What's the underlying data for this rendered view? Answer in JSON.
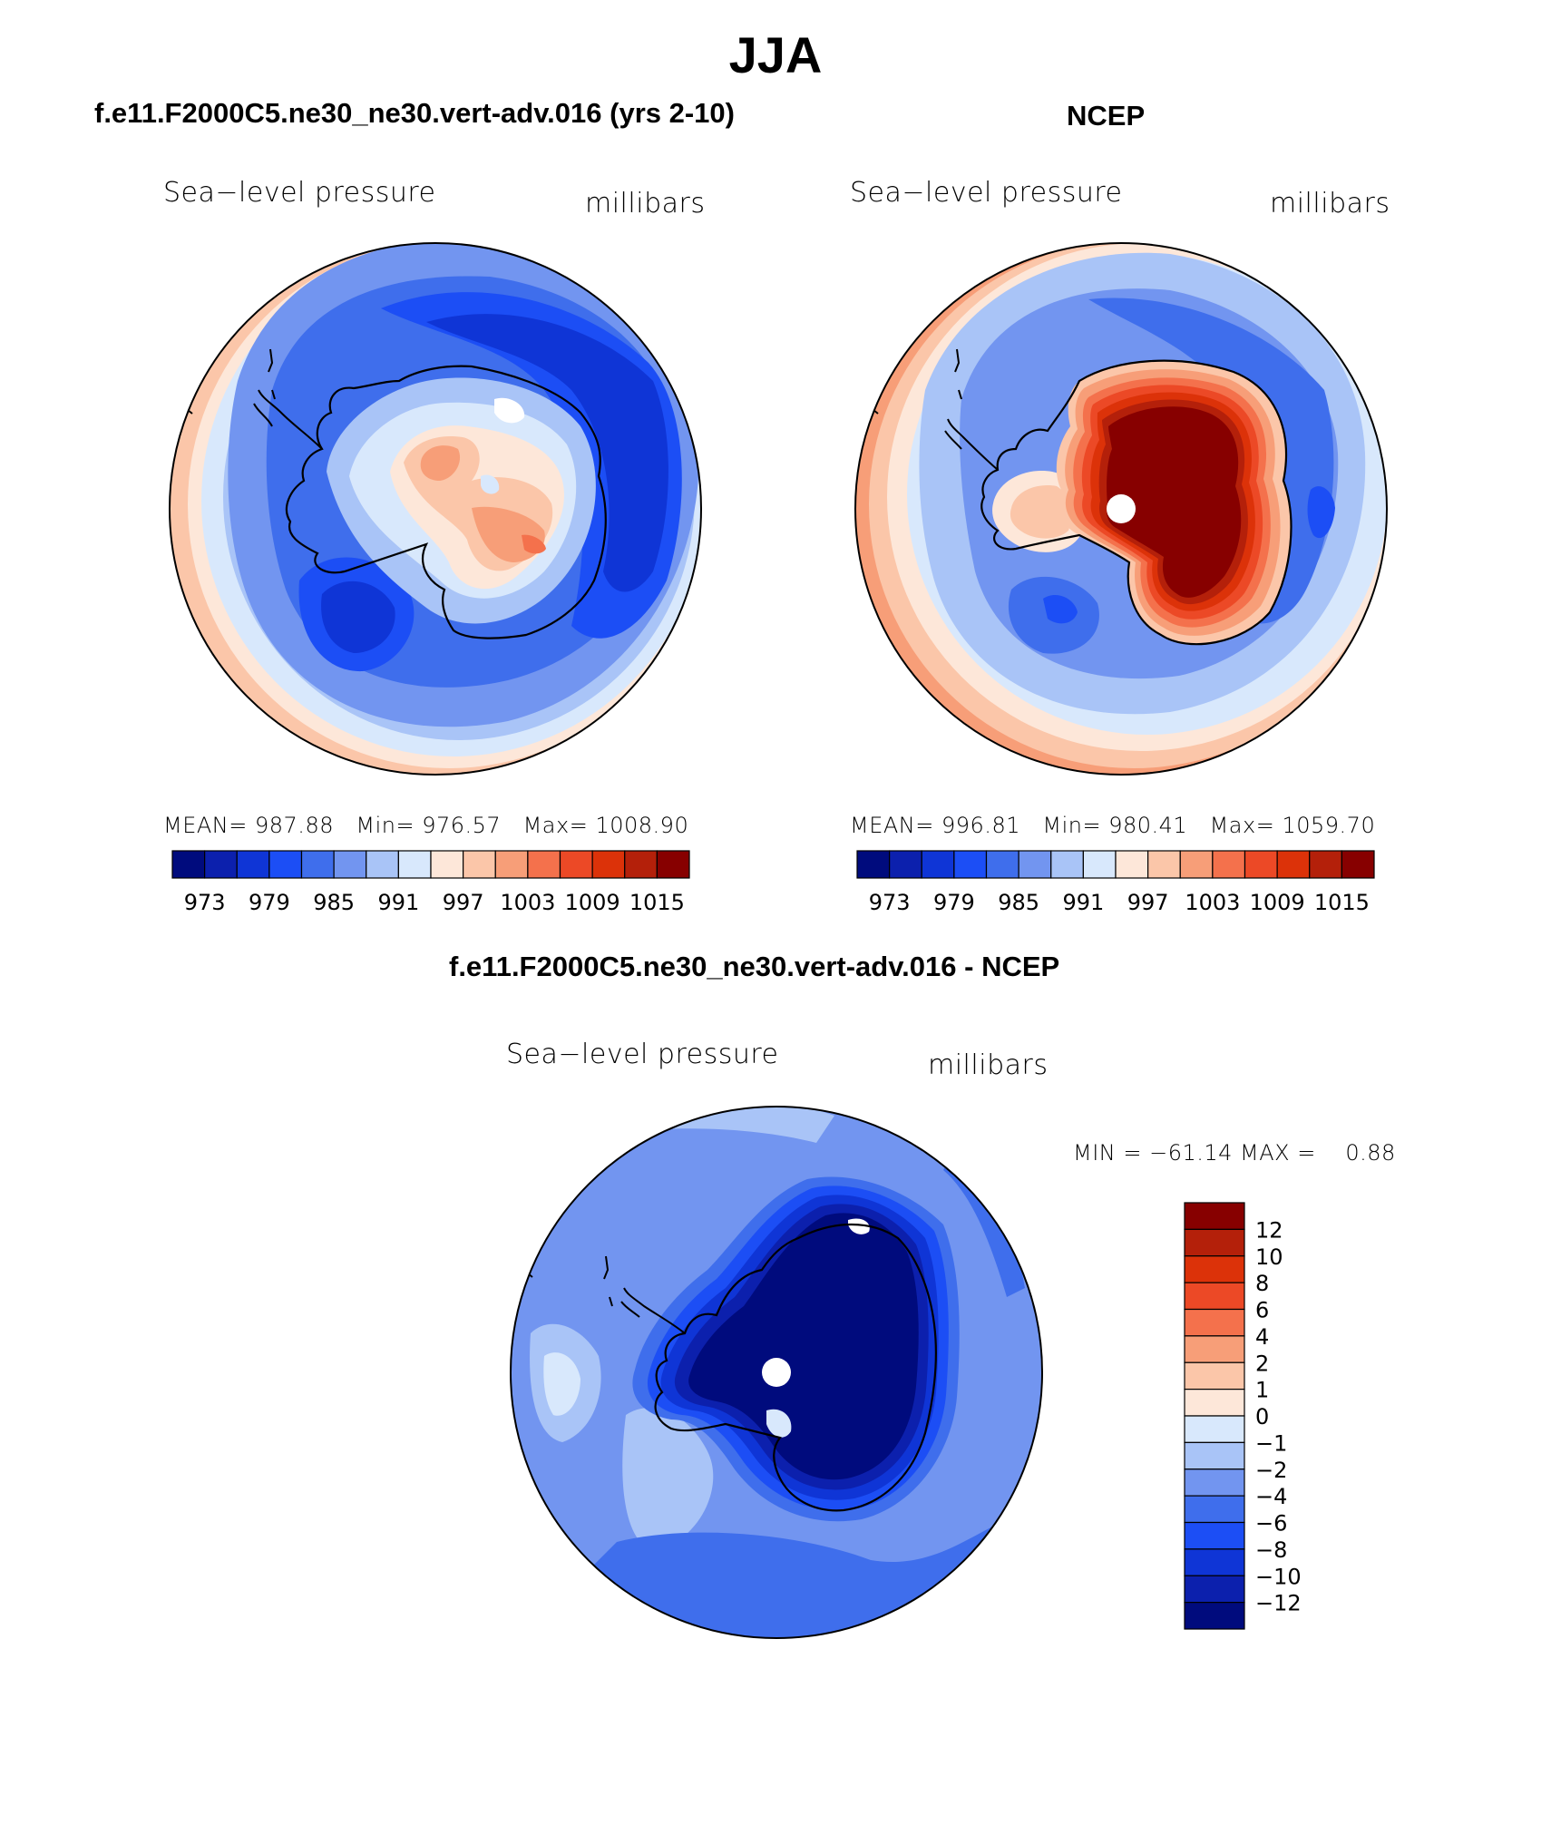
{
  "chart_data": {
    "type": "contour_map",
    "title": "JJA",
    "panels": [
      {
        "title": "f.e11.F2000C5.ne30_ne30.vert-adv.016 (yrs 2-10)",
        "field_label": "Sea−level pressure",
        "units_label": "millibars",
        "stats": {
          "mean_label": "MEAN=",
          "mean": "987.88",
          "min_label": "Min=",
          "min": "976.57",
          "max_label": "Max=",
          "max": "1008.90"
        },
        "colorbar_ticks": [
          "973",
          "979",
          "985",
          "991",
          "997",
          "1003",
          "1009",
          "1015"
        ],
        "contour_levels": [
          970,
          973,
          976,
          979,
          982,
          985,
          988,
          991,
          994,
          997,
          1000,
          1003,
          1006,
          1009,
          1012,
          1015,
          1018
        ]
      },
      {
        "title": "NCEP",
        "field_label": "Sea−level pressure",
        "units_label": "millibars",
        "stats": {
          "mean_label": "MEAN=",
          "mean": "996.81",
          "min_label": "Min=",
          "min": "980.41",
          "max_label": "Max=",
          "max": "1059.70"
        },
        "colorbar_ticks": [
          "973",
          "979",
          "985",
          "991",
          "997",
          "1003",
          "1009",
          "1015"
        ],
        "contour_levels": [
          970,
          973,
          976,
          979,
          982,
          985,
          988,
          991,
          994,
          997,
          1000,
          1003,
          1006,
          1009,
          1012,
          1015,
          1018
        ]
      },
      {
        "title": "f.e11.F2000C5.ne30_ne30.vert-adv.016 - NCEP",
        "field_label": "Sea−level pressure",
        "units_label": "millibars",
        "stats_line": "MIN = −61.14 MAX =    0.88",
        "colorbar_ticks": [
          "12",
          "10",
          "8",
          "6",
          "4",
          "2",
          "1",
          "0",
          "−1",
          "−2",
          "−4",
          "−6",
          "−8",
          "−10",
          "−12"
        ],
        "contour_levels": [
          -12,
          -10,
          -8,
          -6,
          -4,
          -2,
          -1,
          0,
          1,
          2,
          4,
          6,
          8,
          10,
          12
        ]
      }
    ],
    "colors": {
      "seq": [
        "#000b7d",
        "#0c20ad",
        "#0f35d6",
        "#1c4ef5",
        "#3f6eec",
        "#7295f0",
        "#a9c4f7",
        "#d8e8fc",
        "#fde7d9",
        "#fbc6a9",
        "#f79e78",
        "#f4714c",
        "#ec4926",
        "#dc3209",
        "#b4200a",
        "#870000"
      ],
      "diff_top_to_bottom": [
        "#870000",
        "#b4200a",
        "#dc3209",
        "#ec4926",
        "#f4714c",
        "#f79e78",
        "#fbc6a9",
        "#fde7d9",
        "#d8e8fc",
        "#a9c4f7",
        "#7295f0",
        "#3f6eec",
        "#1c4ef5",
        "#0f35d6",
        "#0c20ad",
        "#000b7d"
      ]
    }
  }
}
